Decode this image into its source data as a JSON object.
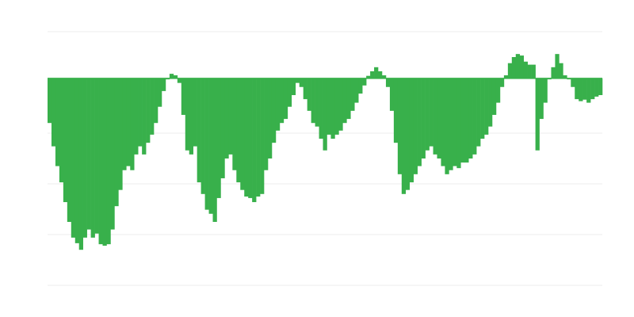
{
  "chart_data": {
    "type": "bar",
    "title": "",
    "xlabel": "",
    "ylabel": "",
    "ylim": [
      -4.08,
      0.92
    ],
    "gridlines": [
      0.92,
      -1.08,
      -2.08,
      -3.08,
      -4.08
    ],
    "grid": true,
    "baseline": 0,
    "bar_color": "#38b04b",
    "grid_color": "#eeeeee",
    "values": [
      -0.88,
      -1.34,
      -1.73,
      -2.05,
      -2.44,
      -2.83,
      -3.14,
      -3.25,
      -3.38,
      -3.14,
      -2.98,
      -3.14,
      -3.06,
      -3.27,
      -3.3,
      -3.27,
      -2.98,
      -2.52,
      -2.2,
      -1.81,
      -1.73,
      -1.81,
      -1.5,
      -1.34,
      -1.5,
      -1.27,
      -1.11,
      -0.88,
      -0.56,
      -0.25,
      -0.02,
      0.09,
      0.06,
      -0.09,
      -0.72,
      -1.42,
      -1.5,
      -1.34,
      -2.05,
      -2.28,
      -2.59,
      -2.67,
      -2.83,
      -2.36,
      -1.97,
      -1.58,
      -1.5,
      -1.81,
      -2.05,
      -2.2,
      -2.33,
      -2.36,
      -2.44,
      -2.33,
      -2.28,
      -1.81,
      -1.58,
      -1.27,
      -1.03,
      -0.88,
      -0.8,
      -0.56,
      -0.33,
      -0.09,
      -0.17,
      -0.41,
      -0.64,
      -0.88,
      -0.95,
      -1.19,
      -1.42,
      -1.11,
      -1.19,
      -1.11,
      -1.03,
      -0.88,
      -0.8,
      -0.64,
      -0.48,
      -0.3,
      -0.14,
      0.05,
      0.14,
      0.22,
      0.14,
      0.06,
      -0.17,
      -0.64,
      -1.27,
      -1.89,
      -2.28,
      -2.2,
      -2.05,
      -1.89,
      -1.73,
      -1.58,
      -1.42,
      -1.34,
      -1.5,
      -1.58,
      -1.73,
      -1.89,
      -1.81,
      -1.73,
      -1.77,
      -1.66,
      -1.66,
      -1.58,
      -1.5,
      -1.34,
      -1.19,
      -1.11,
      -0.95,
      -0.72,
      -0.48,
      -0.17,
      0.06,
      0.3,
      0.42,
      0.48,
      0.45,
      0.33,
      0.27,
      0.27,
      -1.42,
      -0.8,
      -0.48,
      -0.02,
      0.22,
      0.48,
      0.3,
      0.06,
      -0.02,
      -0.17,
      -0.41,
      -0.45,
      -0.42,
      -0.48,
      -0.41,
      -0.36,
      -0.33
    ]
  }
}
